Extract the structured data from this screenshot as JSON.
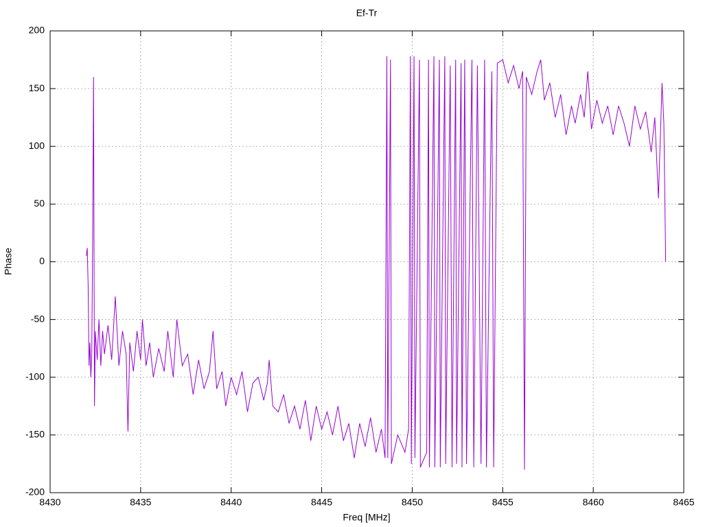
{
  "chart_data": {
    "type": "line",
    "title": "Ef-Tr",
    "x_label": "Freq [MHz]",
    "y_label": "Phase",
    "x": [
      8432.0,
      8432.05,
      8432.1,
      8432.15,
      8432.2,
      8432.25,
      8432.3,
      8432.35,
      8432.4,
      8432.45,
      8432.5,
      8432.6,
      8432.7,
      8432.8,
      8432.9,
      8433.0,
      8433.2,
      8433.4,
      8433.6,
      8433.8,
      8434.0,
      8434.2,
      8434.3,
      8434.4,
      8434.6,
      8434.8,
      8435.0,
      8435.1,
      8435.3,
      8435.5,
      8435.7,
      8436.0,
      8436.3,
      8436.5,
      8436.8,
      8437.0,
      8437.3,
      8437.6,
      8437.9,
      8438.2,
      8438.5,
      8438.8,
      8439.0,
      8439.2,
      8439.5,
      8439.7,
      8440.0,
      8440.3,
      8440.6,
      8440.9,
      8441.2,
      8441.5,
      8441.8,
      8442.0,
      8442.1,
      8442.3,
      8442.6,
      8442.9,
      8443.2,
      8443.5,
      8443.8,
      8444.1,
      8444.4,
      8444.7,
      8445.0,
      8445.3,
      8445.6,
      8445.9,
      8446.2,
      8446.5,
      8446.8,
      8447.1,
      8447.4,
      8447.7,
      8448.0,
      8448.3,
      8448.5,
      8448.6,
      8448.65,
      8448.8,
      8448.85,
      8449.2,
      8449.6,
      8449.8,
      8449.9,
      8449.95,
      8450.1,
      8450.15,
      8450.4,
      8450.45,
      8450.8,
      8450.9,
      8450.95,
      8451.2,
      8451.25,
      8451.5,
      8451.55,
      8451.8,
      8451.85,
      8452.1,
      8452.2,
      8452.4,
      8452.45,
      8452.7,
      8452.75,
      8452.9,
      8453.0,
      8453.3,
      8453.4,
      8453.6,
      8453.8,
      8454.0,
      8454.1,
      8454.4,
      8454.5,
      8454.7,
      8455.0,
      8455.3,
      8455.6,
      8455.9,
      8456.1,
      8456.2,
      8456.3,
      8456.6,
      8456.9,
      8457.1,
      8457.3,
      8457.6,
      8457.9,
      8458.2,
      8458.5,
      8458.8,
      8459.0,
      8459.3,
      8459.5,
      8459.7,
      8459.9,
      8460.2,
      8460.5,
      8460.8,
      8461.1,
      8461.4,
      8461.7,
      8462.0,
      8462.3,
      8462.6,
      8462.9,
      8463.2,
      8463.4,
      8463.6,
      8463.8,
      8463.9,
      8464.0
    ],
    "series": [
      {
        "name": "Ef-Tr",
        "color": "#9400d3",
        "values": [
          5,
          12,
          -20,
          -90,
          -70,
          -100,
          -80,
          20,
          160,
          -125,
          -60,
          -85,
          -50,
          -90,
          -60,
          -80,
          -55,
          -85,
          -30,
          -90,
          -60,
          -80,
          -147,
          -70,
          -95,
          -60,
          -85,
          -50,
          -90,
          -70,
          -100,
          -75,
          -95,
          -60,
          -100,
          -50,
          -90,
          -80,
          -115,
          -85,
          -110,
          -95,
          -60,
          -110,
          -95,
          -125,
          -100,
          -115,
          -95,
          -130,
          -105,
          -100,
          -120,
          -105,
          -85,
          -125,
          -130,
          -115,
          -140,
          -125,
          -145,
          -120,
          -155,
          -125,
          -145,
          -130,
          -150,
          -125,
          -155,
          -140,
          -170,
          -140,
          -160,
          -135,
          -165,
          -145,
          -170,
          178,
          -170,
          175,
          -175,
          -150,
          -165,
          -145,
          178,
          -175,
          178,
          -170,
          175,
          -178,
          -165,
          175,
          -178,
          178,
          -178,
          175,
          -178,
          178,
          -175,
          170,
          -178,
          175,
          -175,
          172,
          -178,
          175,
          -175,
          175,
          -178,
          170,
          -175,
          175,
          -178,
          165,
          -178,
          172,
          175,
          155,
          170,
          150,
          165,
          -180,
          160,
          145,
          165,
          175,
          140,
          155,
          125,
          145,
          110,
          135,
          120,
          145,
          125,
          165,
          115,
          140,
          120,
          135,
          110,
          135,
          120,
          100,
          135,
          115,
          130,
          95,
          125,
          55,
          155,
          120,
          0
        ]
      }
    ],
    "xlim": [
      8430,
      8465
    ],
    "ylim": [
      -200,
      200
    ],
    "xticks": [
      8430,
      8435,
      8440,
      8445,
      8450,
      8455,
      8460,
      8465
    ],
    "yticks": [
      -200,
      -150,
      -100,
      -50,
      0,
      50,
      100,
      150,
      200
    ],
    "grid": true
  }
}
